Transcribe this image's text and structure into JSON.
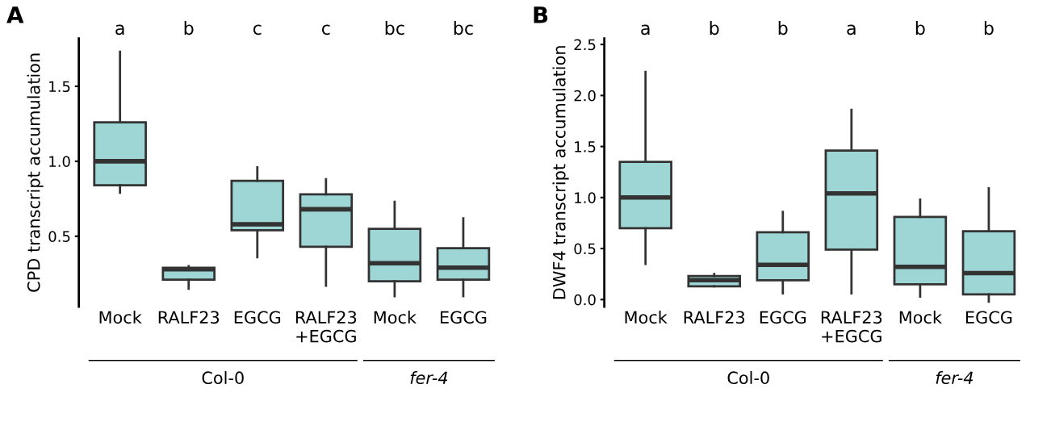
{
  "chart_data": [
    {
      "type": "box",
      "ylabel": "CPD transcript accumulation",
      "categories": [
        "Mock",
        "RALF23",
        "EGCG",
        "RALF23\n+EGCG",
        "Mock",
        "EGCG"
      ],
      "color": "#9dd6d4",
      "ylim": [
        0.03,
        1.82
      ],
      "yticks": [
        {
          "value": 0.5,
          "label": "0.5"
        },
        {
          "value": 1,
          "label": "1.0"
        },
        {
          "value": 1.5,
          "label": "1.5"
        }
      ],
      "boxes": [
        {
          "low": 0.79,
          "q1": 0.84,
          "median": 1.0,
          "q3": 1.26,
          "high": 1.73
        },
        {
          "low": 0.15,
          "q1": 0.21,
          "median": 0.28,
          "q3": 0.29,
          "high": 0.3
        },
        {
          "low": 0.36,
          "q1": 0.54,
          "median": 0.58,
          "q3": 0.87,
          "high": 0.96
        },
        {
          "low": 0.17,
          "q1": 0.43,
          "median": 0.68,
          "q3": 0.78,
          "high": 0.88
        },
        {
          "low": 0.1,
          "q1": 0.2,
          "median": 0.32,
          "q3": 0.55,
          "high": 0.73
        },
        {
          "low": 0.1,
          "q1": 0.21,
          "median": 0.29,
          "q3": 0.42,
          "high": 0.62
        }
      ],
      "annotations": [
        "A",
        "a",
        "b",
        "c",
        "c",
        "bc",
        "bc",
        "Col-0",
        "fer-4"
      ]
    },
    {
      "type": "box",
      "ylabel": "DWF4 transcript accumulation",
      "categories": [
        "Mock",
        "RALF23",
        "EGCG",
        "RALF23\n+EGCG",
        "Mock",
        "EGCG"
      ],
      "color": "#9dd6d4",
      "ylim": [
        -0.07,
        2.56
      ],
      "yticks": [
        {
          "value": 0,
          "label": "0.0"
        },
        {
          "value": 0.5,
          "label": "0.5"
        },
        {
          "value": 1,
          "label": "1.0"
        },
        {
          "value": 1.5,
          "label": "1.5"
        },
        {
          "value": 2,
          "label": "2.0"
        },
        {
          "value": 2.5,
          "label": "2.5"
        }
      ],
      "boxes": [
        {
          "low": 0.35,
          "q1": 0.7,
          "median": 1.0,
          "q3": 1.35,
          "high": 2.23
        },
        {
          "low": 0.13,
          "q1": 0.13,
          "median": 0.19,
          "q3": 0.23,
          "high": 0.25
        },
        {
          "low": 0.06,
          "q1": 0.19,
          "median": 0.34,
          "q3": 0.66,
          "high": 0.86
        },
        {
          "low": 0.06,
          "q1": 0.49,
          "median": 1.04,
          "q3": 1.46,
          "high": 1.86
        },
        {
          "low": 0.03,
          "q1": 0.15,
          "median": 0.32,
          "q3": 0.81,
          "high": 0.98
        },
        {
          "low": -0.02,
          "q1": 0.05,
          "median": 0.26,
          "q3": 0.67,
          "high": 1.09
        }
      ],
      "annotations": [
        "B",
        "a",
        "b",
        "b",
        "a",
        "b",
        "b",
        "Col-0",
        "fer-4"
      ]
    }
  ]
}
